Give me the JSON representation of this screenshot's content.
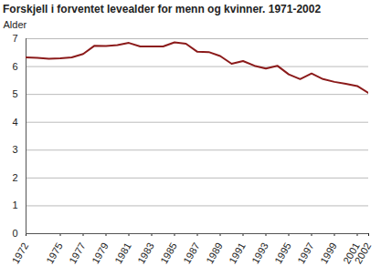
{
  "chart_data": {
    "type": "line",
    "title": "Forskjell i forventet levealder for menn og kvinner. 1971-2002",
    "y_label": "Alder",
    "x": [
      1972,
      1973,
      1974,
      1975,
      1976,
      1977,
      1978,
      1979,
      1980,
      1981,
      1982,
      1983,
      1984,
      1985,
      1986,
      1987,
      1988,
      1989,
      1990,
      1991,
      1992,
      1993,
      1994,
      1995,
      1996,
      1997,
      1998,
      1999,
      2000,
      2001,
      2002
    ],
    "values": [
      6.33,
      6.31,
      6.28,
      6.3,
      6.33,
      6.45,
      6.75,
      6.74,
      6.77,
      6.85,
      6.72,
      6.72,
      6.72,
      6.87,
      6.82,
      6.53,
      6.52,
      6.38,
      6.1,
      6.2,
      6.03,
      5.93,
      6.03,
      5.72,
      5.55,
      5.75,
      5.55,
      5.45,
      5.38,
      5.3,
      5.05
    ],
    "color": "#8b1a1a",
    "xlim": [
      1972,
      2002
    ],
    "xticks": [
      1972,
      1975,
      1977,
      1979,
      1981,
      1983,
      1985,
      1987,
      1989,
      1991,
      1993,
      1995,
      1997,
      1999,
      2001,
      2002
    ],
    "ylim": [
      0,
      7
    ],
    "yticks": [
      0,
      1,
      2,
      3,
      4,
      5,
      6,
      7
    ],
    "grid": true
  }
}
